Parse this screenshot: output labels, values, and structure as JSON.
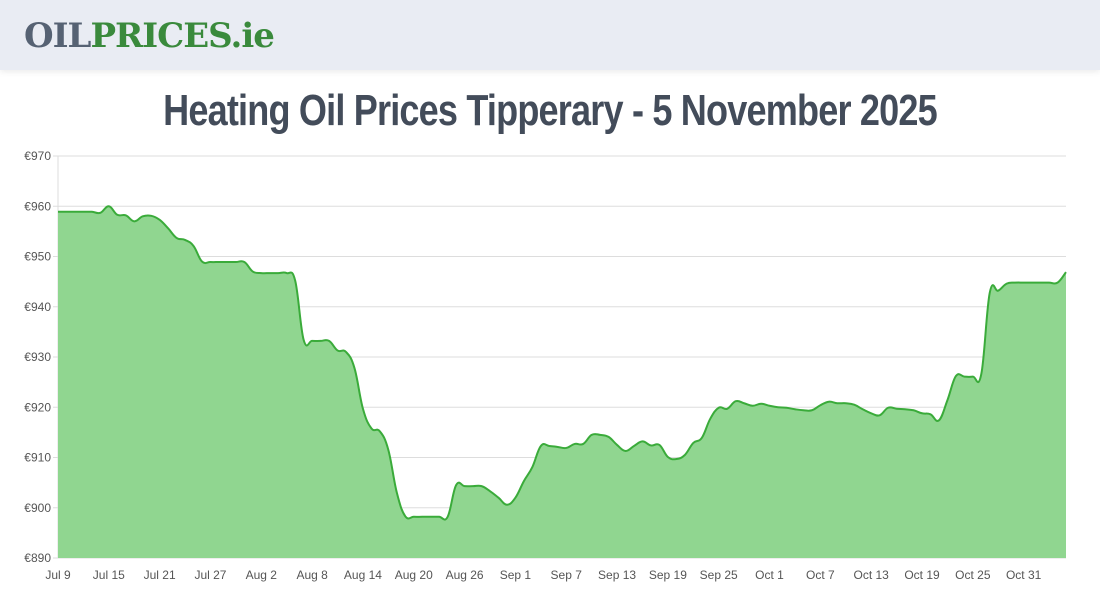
{
  "header": {
    "logo_part1": "OIL",
    "logo_part2": "PRICES.ie"
  },
  "page": {
    "title": "Heating Oil Prices Tipperary - 5 November 2025"
  },
  "colors": {
    "line": "#3aab3a",
    "fill": "#90d690",
    "grid": "#dddddd",
    "title": "#434c5a",
    "logo_gray": "#566273",
    "logo_green": "#3a8a3c"
  },
  "chart_data": {
    "type": "area",
    "title": "Heating Oil Prices Tipperary - 5 November 2025",
    "xlabel": "",
    "ylabel": "",
    "currency": "€",
    "ylim": [
      890,
      970
    ],
    "y_ticks": [
      890,
      900,
      910,
      920,
      930,
      940,
      950,
      960,
      970
    ],
    "y_tick_labels": [
      "€890",
      "€900",
      "€910",
      "€920",
      "€930",
      "€940",
      "€950",
      "€960",
      "€970"
    ],
    "x_tick_labels": [
      "Jul 9",
      "Jul 15",
      "Jul 21",
      "Jul 27",
      "Aug 2",
      "Aug 8",
      "Aug 14",
      "Aug 20",
      "Aug 26",
      "Sep 1",
      "Sep 7",
      "Sep 13",
      "Sep 19",
      "Sep 25",
      "Oct 1",
      "Oct 7",
      "Oct 13",
      "Oct 19",
      "Oct 25",
      "Oct 31"
    ],
    "grid": true,
    "legend": "none",
    "x_start": "Jul 9",
    "x_end": "Nov 5",
    "values": [
      958.9,
      958.9,
      958.9,
      958.9,
      958.9,
      958.7,
      960.0,
      958.3,
      958.2,
      957.0,
      958.0,
      958.1,
      957.3,
      955.6,
      953.7,
      953.3,
      952.1,
      949.0,
      948.9,
      948.9,
      948.9,
      948.9,
      948.9,
      947.0,
      946.7,
      946.7,
      946.7,
      946.7,
      945.2,
      933.4,
      933.2,
      933.2,
      933.2,
      931.3,
      931.0,
      927.8,
      919.7,
      915.8,
      915.2,
      911.5,
      903.0,
      898.3,
      898.2,
      898.2,
      898.2,
      898.2,
      898.2,
      904.5,
      904.3,
      904.3,
      904.3,
      903.3,
      902.0,
      900.6,
      902.0,
      905.3,
      908.1,
      912.3,
      912.3,
      912.1,
      911.9,
      912.7,
      912.7,
      914.5,
      914.5,
      914.1,
      912.5,
      911.3,
      912.3,
      913.2,
      912.4,
      912.5,
      910.1,
      909.7,
      910.5,
      912.9,
      913.9,
      917.7,
      919.9,
      919.7,
      921.2,
      920.8,
      920.3,
      920.7,
      920.3,
      920.0,
      919.9,
      919.6,
      919.4,
      919.4,
      920.4,
      921.1,
      920.8,
      920.8,
      920.5,
      919.6,
      918.8,
      918.4,
      919.9,
      919.7,
      919.6,
      919.4,
      918.8,
      918.6,
      917.4,
      921.4,
      926.2,
      926.1,
      926.1,
      926.6,
      942.8,
      943.2,
      944.6,
      944.8,
      944.8,
      944.8,
      944.8,
      944.8,
      944.8,
      946.9
    ]
  }
}
